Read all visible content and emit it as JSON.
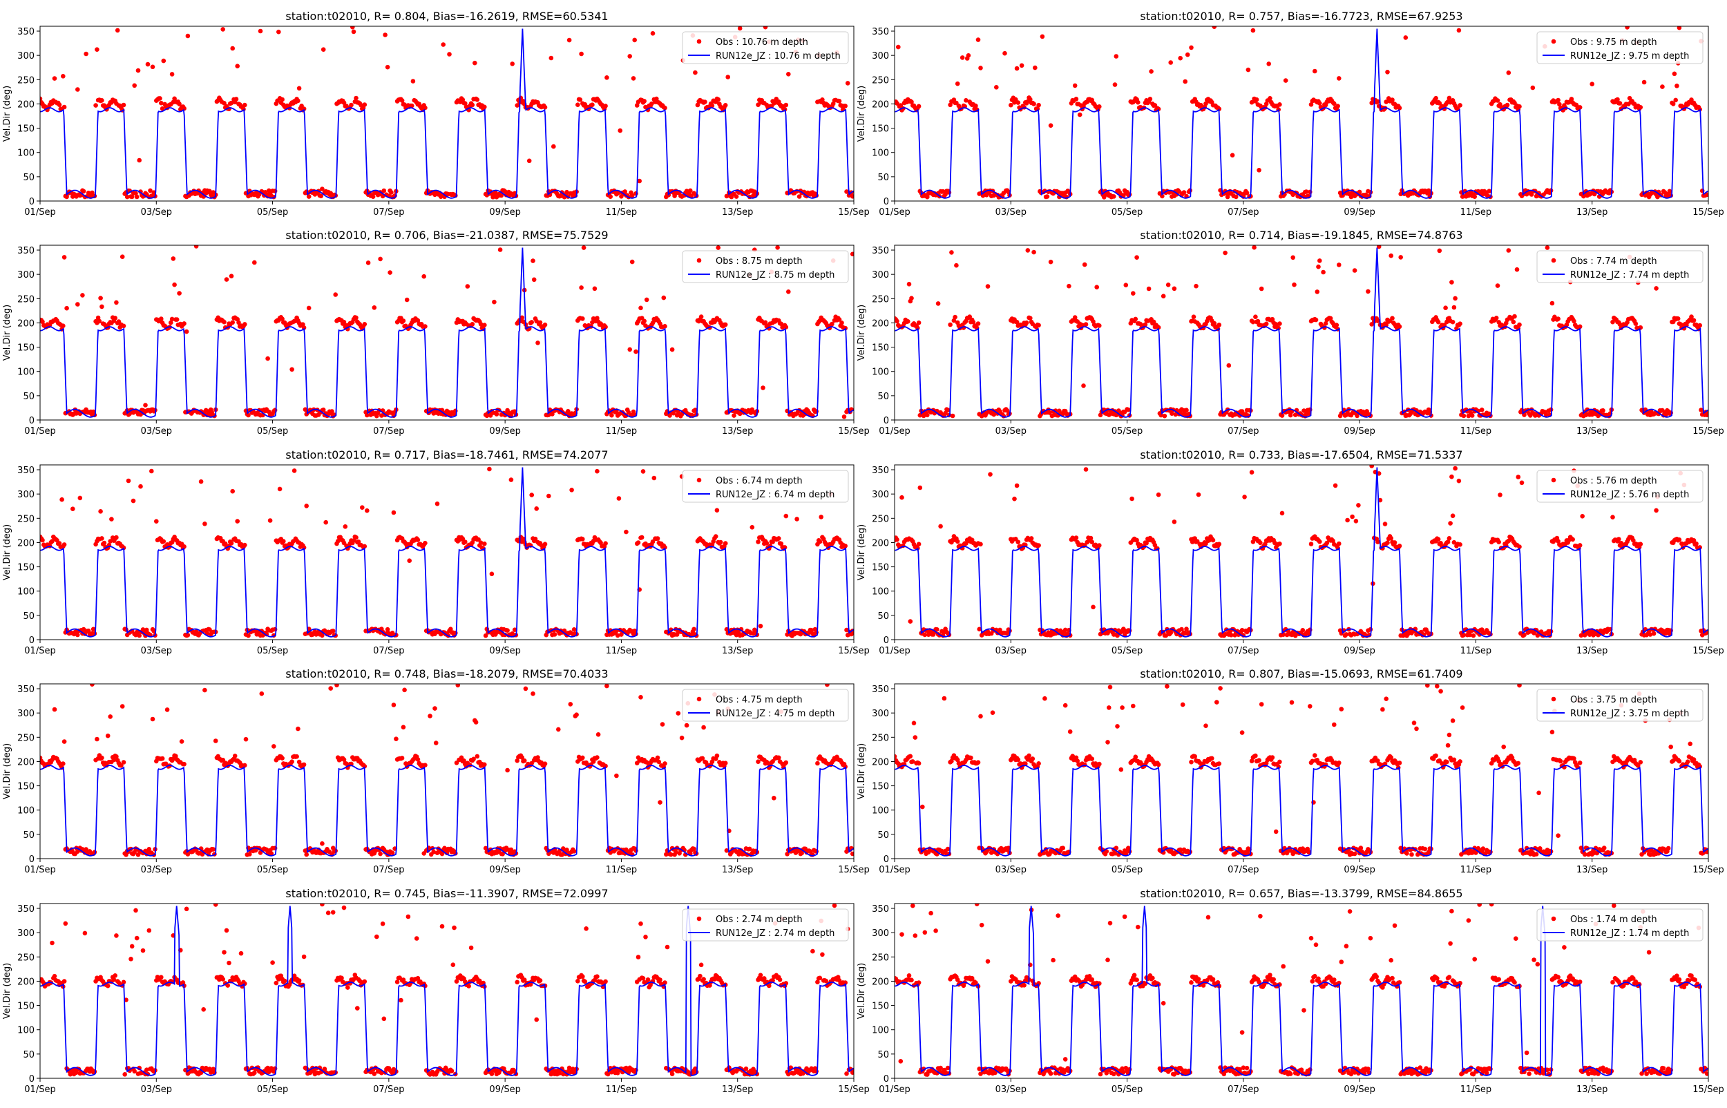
{
  "figure": {
    "background": "#ffffff"
  },
  "style": {
    "obs_color": "#ff0000",
    "model_color": "#0000ff",
    "axis_color": "#000000"
  },
  "shared": {
    "ylabel": "Vel.Dir (deg)",
    "xlim": [
      "01/Sep",
      "15/Sep"
    ],
    "ylim": [
      0,
      360
    ],
    "xticks": [
      "01/Sep",
      "03/Sep",
      "05/Sep",
      "07/Sep",
      "09/Sep",
      "11/Sep",
      "13/Sep",
      "15/Sep"
    ],
    "yticks": [
      0,
      50,
      100,
      150,
      200,
      250,
      300,
      350
    ],
    "grid": false,
    "legend_position": "top-right"
  },
  "chart_data": [
    {
      "type": "scatter+line",
      "title": "station:t02010, R= 0.804, Bias=-16.2619, RMSE=60.5341",
      "obs_label": "Obs : 10.76 m depth",
      "model_label": "RUN12e_JZ : 10.76 m depth",
      "depth_m": 10.76,
      "R": 0.804,
      "Bias": -16.2619,
      "RMSE": 60.5341
    },
    {
      "type": "scatter+line",
      "title": "station:t02010, R= 0.757, Bias=-16.7723, RMSE=67.9253",
      "obs_label": "Obs : 9.75 m depth",
      "model_label": "RUN12e_JZ : 9.75 m depth",
      "depth_m": 9.75,
      "R": 0.757,
      "Bias": -16.7723,
      "RMSE": 67.9253
    },
    {
      "type": "scatter+line",
      "title": "station:t02010, R= 0.706, Bias=-21.0387, RMSE=75.7529",
      "obs_label": "Obs : 8.75 m depth",
      "model_label": "RUN12e_JZ : 8.75 m depth",
      "depth_m": 8.75,
      "R": 0.706,
      "Bias": -21.0387,
      "RMSE": 75.7529
    },
    {
      "type": "scatter+line",
      "title": "station:t02010, R= 0.714, Bias=-19.1845, RMSE=74.8763",
      "obs_label": "Obs : 7.74 m depth",
      "model_label": "RUN12e_JZ : 7.74 m depth",
      "depth_m": 7.74,
      "R": 0.714,
      "Bias": -19.1845,
      "RMSE": 74.8763
    },
    {
      "type": "scatter+line",
      "title": "station:t02010, R= 0.717, Bias=-18.7461, RMSE=74.2077",
      "obs_label": "Obs : 6.74 m depth",
      "model_label": "RUN12e_JZ : 6.74 m depth",
      "depth_m": 6.74,
      "R": 0.717,
      "Bias": -18.7461,
      "RMSE": 74.2077
    },
    {
      "type": "scatter+line",
      "title": "station:t02010, R= 0.733, Bias=-17.6504, RMSE=71.5337",
      "obs_label": "Obs : 5.76 m depth",
      "model_label": "RUN12e_JZ : 5.76 m depth",
      "depth_m": 5.76,
      "R": 0.733,
      "Bias": -17.6504,
      "RMSE": 71.5337
    },
    {
      "type": "scatter+line",
      "title": "station:t02010, R= 0.748, Bias=-18.2079, RMSE=70.4033",
      "obs_label": "Obs : 4.75 m depth",
      "model_label": "RUN12e_JZ : 4.75 m depth",
      "depth_m": 4.75,
      "R": 0.748,
      "Bias": -18.2079,
      "RMSE": 70.4033
    },
    {
      "type": "scatter+line",
      "title": "station:t02010, R= 0.807, Bias=-15.0693, RMSE=61.7409",
      "obs_label": "Obs : 3.75 m depth",
      "model_label": "RUN12e_JZ : 3.75 m depth",
      "depth_m": 3.75,
      "R": 0.807,
      "Bias": -15.0693,
      "RMSE": 61.7409
    },
    {
      "type": "scatter+line",
      "title": "station:t02010, R= 0.745, Bias=-11.3907, RMSE=72.0997",
      "obs_label": "Obs : 2.74 m depth",
      "model_label": "RUN12e_JZ : 2.74 m depth",
      "depth_m": 2.74,
      "R": 0.745,
      "Bias": -11.3907,
      "RMSE": 72.0997
    },
    {
      "type": "scatter+line",
      "title": "station:t02010, R= 0.657, Bias=-13.3799, RMSE=84.8655",
      "obs_label": "Obs : 1.74 m depth",
      "model_label": "RUN12e_JZ : 1.74 m depth",
      "depth_m": 1.74,
      "R": 0.657,
      "Bias": -13.3799,
      "RMSE": 84.8655
    }
  ]
}
